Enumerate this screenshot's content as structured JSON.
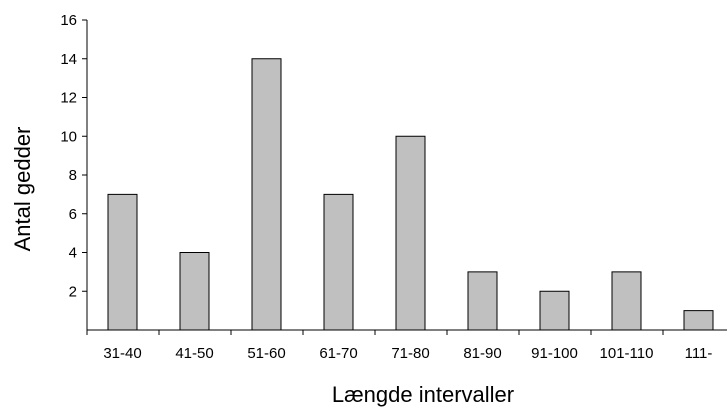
{
  "chart_data": {
    "type": "bar",
    "title": "",
    "xlabel": "Længde intervaller",
    "ylabel": "Antal gedder",
    "categories": [
      "31-40",
      "41-50",
      "51-60",
      "61-70",
      "71-80",
      "81-90",
      "91-100",
      "101-110",
      "111-"
    ],
    "values": [
      7,
      4,
      14,
      7,
      10,
      3,
      2,
      3,
      1
    ],
    "ylim": [
      0,
      16
    ],
    "yticks": [
      2,
      4,
      6,
      8,
      10,
      12,
      14,
      16
    ],
    "grid": false,
    "legend": "none",
    "bar_color": "#c0c0c0",
    "bar_stroke": "#000000"
  }
}
